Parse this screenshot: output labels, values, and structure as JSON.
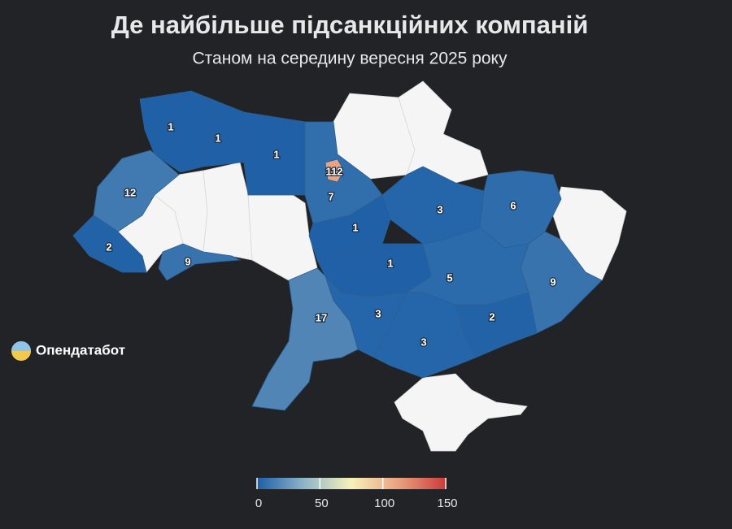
{
  "title": "Де найбільше підсанкційних компаній",
  "subtitle": "Станом на середину вересня 2025 року",
  "brand": "Опендатабот",
  "regions": [
    {
      "value": 1
    },
    {
      "value": 1
    },
    {
      "value": 1
    },
    {
      "value": 7
    },
    {
      "value": 112
    },
    {
      "value": 12
    },
    {
      "value": 2
    },
    {
      "value": 9
    },
    {
      "value": 1
    },
    {
      "value": 1
    },
    {
      "value": 3
    },
    {
      "value": 6
    },
    {
      "value": 9
    },
    {
      "value": 5
    },
    {
      "value": 2
    },
    {
      "value": 3
    },
    {
      "value": 3
    },
    {
      "value": 17
    }
  ],
  "colorbar": {
    "range": [
      0,
      150
    ],
    "ticks": [
      0,
      50,
      100,
      150
    ],
    "colors": [
      "#1c5ea6",
      "#8fb5c8",
      "#f7f1b9",
      "#eaa17f",
      "#cc3b3b"
    ]
  }
}
